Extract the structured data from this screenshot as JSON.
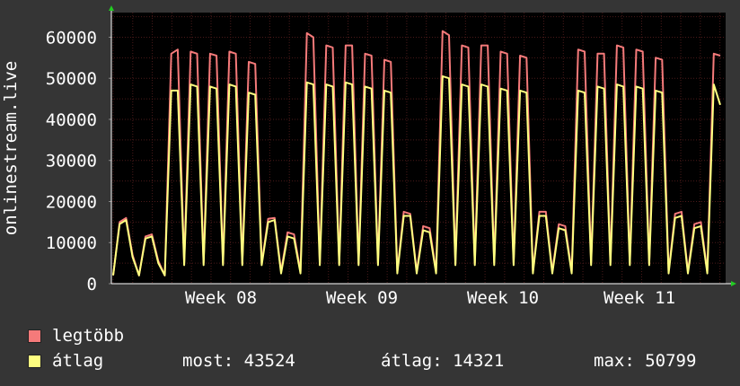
{
  "chart_data": {
    "type": "area",
    "ylabel": "onlinestream.live",
    "yticks": [
      0,
      10000,
      20000,
      30000,
      40000,
      50000,
      60000
    ],
    "ylim": [
      0,
      66000
    ],
    "xticks": [
      "Week 08",
      "Week 09",
      "Week 10",
      "Week 11"
    ],
    "grid": true,
    "colors": {
      "max": "#f57a7a",
      "avg": "#ffff80",
      "background": "#000000",
      "grid": "#4a1a1a"
    },
    "series": [
      {
        "name": "legtöbb",
        "values": [
          2000,
          15000,
          16000,
          7000,
          2000,
          11500,
          12000,
          5500,
          2000,
          56000,
          57000,
          5000,
          56500,
          56000,
          5000,
          56000,
          55500,
          5000,
          56500,
          56000,
          5000,
          54000,
          53500,
          5000,
          15800,
          16000,
          3000,
          12500,
          12000,
          3000,
          61000,
          60000,
          5000,
          58000,
          57500,
          5000,
          58000,
          58000,
          5000,
          56000,
          55500,
          5000,
          54500,
          54000,
          3000,
          17500,
          17000,
          3000,
          14000,
          13500,
          3000,
          61500,
          60500,
          5000,
          58000,
          57500,
          5000,
          58000,
          58000,
          5000,
          56500,
          56000,
          5000,
          55500,
          55000,
          3000,
          17500,
          17500,
          3000,
          14500,
          14000,
          3000,
          57000,
          56500,
          5000,
          56000,
          56000,
          5000,
          58000,
          57500,
          5000,
          57000,
          56500,
          5000,
          55000,
          54500,
          3000,
          17000,
          17500,
          3000,
          14500,
          15000,
          3000,
          56000,
          55500
        ],
        "stats": {
          "most": "43524",
          "atlag": "14321",
          "max": "50799"
        }
      },
      {
        "name": "átlag",
        "values": [
          2000,
          14500,
          15500,
          6500,
          2000,
          11000,
          11500,
          5000,
          2000,
          47000,
          47000,
          4500,
          48500,
          48000,
          4500,
          48000,
          47500,
          4500,
          48500,
          48000,
          4500,
          46500,
          46000,
          4500,
          15000,
          15500,
          2500,
          11500,
          11000,
          2500,
          49000,
          48500,
          4500,
          48500,
          48000,
          4500,
          49000,
          48500,
          4500,
          48000,
          47500,
          4500,
          47000,
          46500,
          2500,
          16500,
          16500,
          2500,
          13000,
          12500,
          2500,
          50500,
          50000,
          4500,
          48500,
          48000,
          4500,
          48500,
          48000,
          4500,
          47500,
          47000,
          4500,
          47000,
          46500,
          2500,
          16500,
          16500,
          2500,
          13500,
          13000,
          2500,
          47000,
          46500,
          4500,
          48000,
          47500,
          4500,
          48500,
          48000,
          4500,
          48000,
          47500,
          4500,
          47000,
          46500,
          2500,
          16000,
          16500,
          2500,
          13500,
          14000,
          2500,
          48500,
          43524
        ]
      }
    ]
  },
  "legend": {
    "max_label": "legtöbb",
    "avg_label": "átlag",
    "most": "most: 43524",
    "atlag": "átlag: 14321",
    "max": "max: 50799"
  }
}
